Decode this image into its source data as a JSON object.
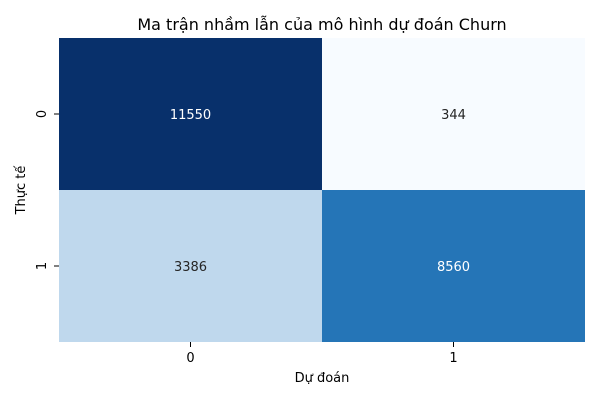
{
  "chart_data": {
    "type": "heatmap",
    "title": "Ma trận nhầm lẫn của mô hình dự đoán Churn",
    "xlabel": "Dự đoán",
    "ylabel": "Thực tế",
    "x_categories": [
      "0",
      "1"
    ],
    "y_categories": [
      "0",
      "1"
    ],
    "values": [
      [
        11550,
        344
      ],
      [
        3386,
        8560
      ]
    ],
    "colormap": "Blues",
    "colorbar": false,
    "annotations": true
  }
}
